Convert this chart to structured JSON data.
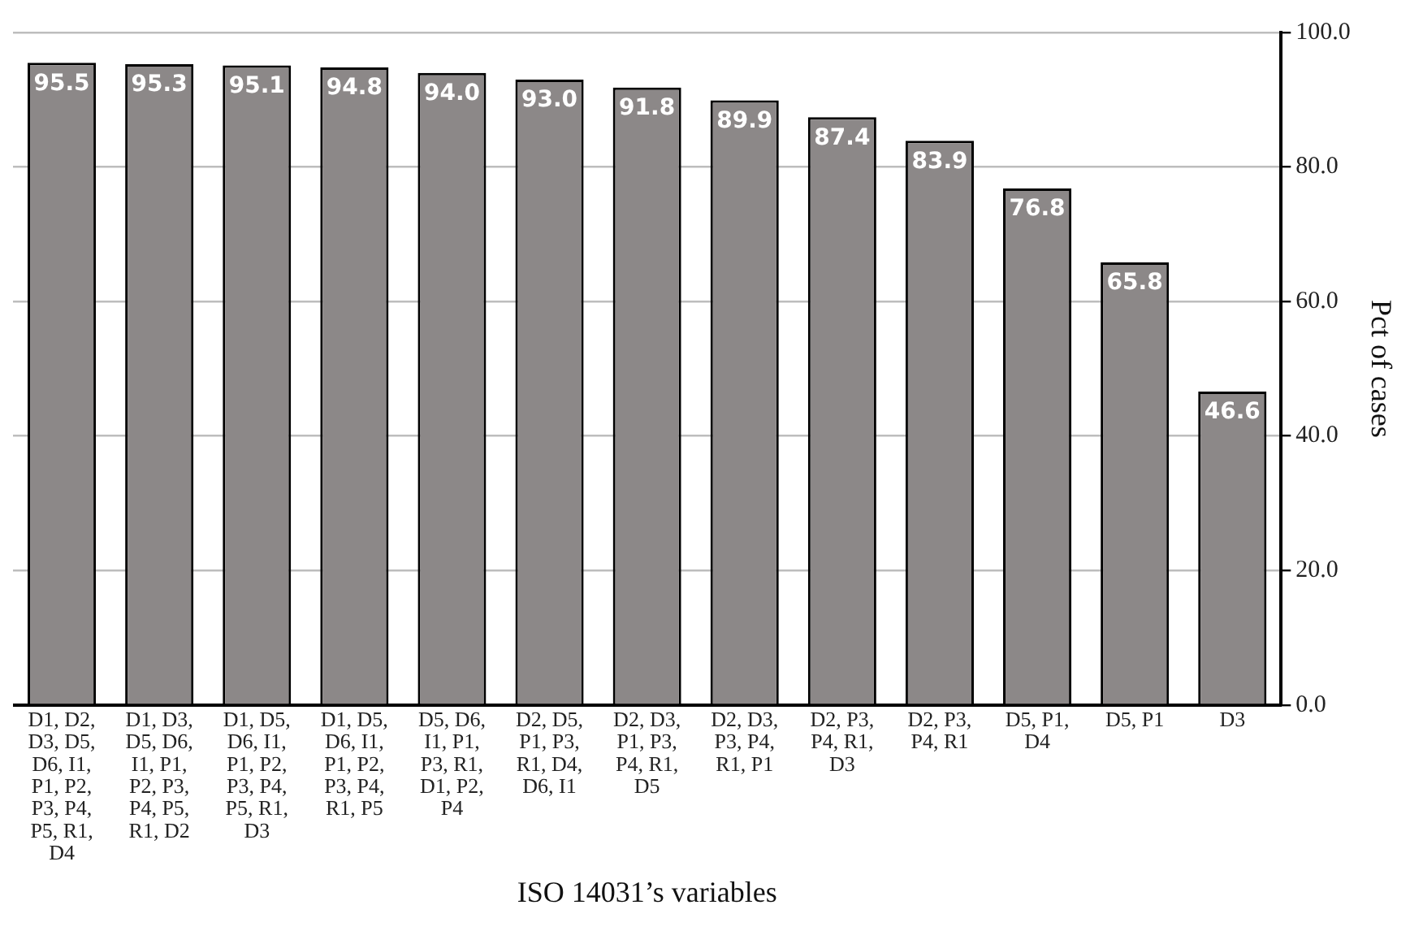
{
  "chart_data": {
    "type": "bar",
    "xlabel": "ISO 14031’s variables",
    "ylabel": "Pct of cases",
    "categories": [
      "D1, D2,\nD3, D5,\nD6, I1,\nP1, P2,\nP3, P4,\nP5, R1,\nD4",
      "D1, D3,\nD5, D6,\nI1, P1,\nP2, P3,\nP4, P5,\nR1, D2",
      "D1, D5,\nD6, I1,\nP1, P2,\nP3, P4,\nP5, R1,\nD3",
      "D1, D5,\nD6, I1,\nP1, P2,\nP3, P4,\nR1, P5",
      "D5, D6,\nI1, P1,\nP3, R1,\nD1, P2,\nP4",
      "D2, D5,\nP1, P3,\nR1, D4,\nD6, I1",
      "D2, D3,\nP1, P3,\nP4, R1,\nD5",
      "D2, D3,\nP3, P4,\nR1, P1",
      "D2, P3,\nP4, R1,\nD3",
      "D2, P3,\nP4, R1",
      "D5, P1,\nD4",
      "D5, P1",
      "D3"
    ],
    "values": [
      95.5,
      95.3,
      95.1,
      94.8,
      94.0,
      93.0,
      91.8,
      89.9,
      87.4,
      83.9,
      76.8,
      65.8,
      46.6
    ],
    "value_labels": [
      "95.5",
      "95.3",
      "95.1",
      "94.8",
      "94.0",
      "93.0",
      "91.8",
      "89.9",
      "87.4",
      "83.9",
      "76.8",
      "65.8",
      "46.6"
    ],
    "color": "#8c8888",
    "grid": "y",
    "legend": false,
    "ylim": [
      0,
      100
    ],
    "yticks": [
      {
        "value": 0,
        "label": "0.0"
      },
      {
        "value": 20,
        "label": "20.0"
      },
      {
        "value": 40,
        "label": "40.0"
      },
      {
        "value": 60,
        "label": "60.0"
      },
      {
        "value": 80,
        "label": "80.0"
      },
      {
        "value": 100,
        "label": "100.0"
      }
    ]
  }
}
